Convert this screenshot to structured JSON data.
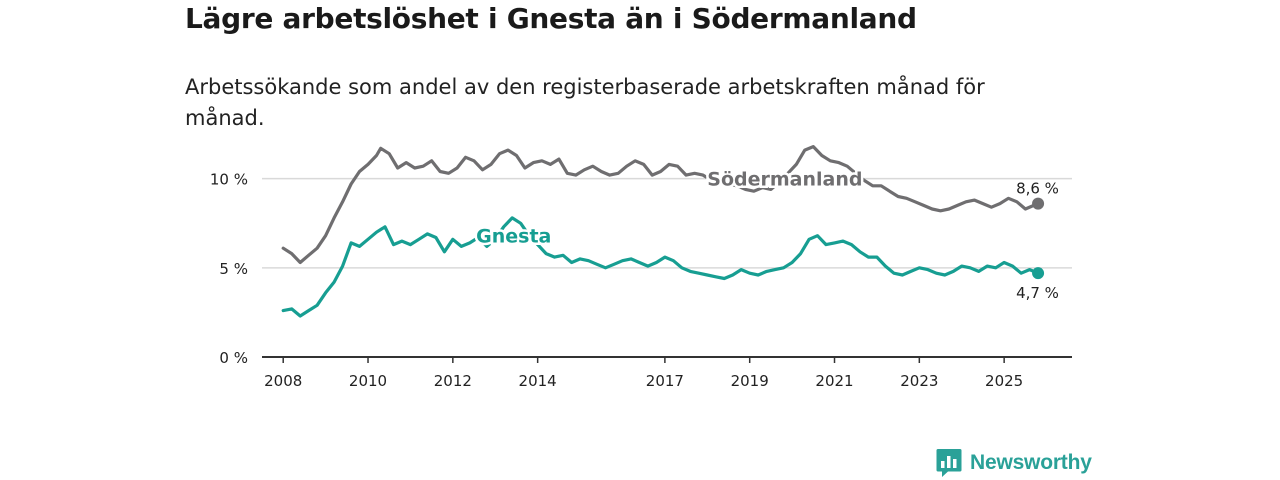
{
  "title": "Lägre arbetslöshet i Gnesta än i Södermanland",
  "subtitle": "Arbetssökande som andel av den registerbaserade arbetskraften månad för månad.",
  "brand": {
    "name": "Newsworthy"
  },
  "colors": {
    "gnesta": "#179e92",
    "sodermanland": "#6f6e70",
    "axis": "#333333",
    "grid": "#d9d9d9"
  },
  "chart_data": {
    "type": "line",
    "title": "Lägre arbetslöshet i Gnesta än i Södermanland",
    "ylabel": "",
    "xlabel": "",
    "ylim": [
      0,
      12
    ],
    "xlim": [
      2007.5,
      2026.6
    ],
    "y_ticks": [
      {
        "value": 0,
        "label": "0 %"
      },
      {
        "value": 5,
        "label": "5 %"
      },
      {
        "value": 10,
        "label": "10 %"
      }
    ],
    "x_ticks": [
      {
        "value": 2008,
        "label": "2008"
      },
      {
        "value": 2010,
        "label": "2010"
      },
      {
        "value": 2012,
        "label": "2012"
      },
      {
        "value": 2014,
        "label": "2014"
      },
      {
        "value": 2017,
        "label": "2017"
      },
      {
        "value": 2019,
        "label": "2019"
      },
      {
        "value": 2021,
        "label": "2021"
      },
      {
        "value": 2023,
        "label": "2023"
      },
      {
        "value": 2025,
        "label": "2025"
      }
    ],
    "series": [
      {
        "name": "Södermanland",
        "label": "Södermanland",
        "end_label": "8,6 %",
        "points": [
          [
            2008.0,
            6.1
          ],
          [
            2008.2,
            5.8
          ],
          [
            2008.4,
            5.3
          ],
          [
            2008.6,
            5.7
          ],
          [
            2008.8,
            6.1
          ],
          [
            2009.0,
            6.8
          ],
          [
            2009.2,
            7.8
          ],
          [
            2009.4,
            8.7
          ],
          [
            2009.6,
            9.7
          ],
          [
            2009.8,
            10.4
          ],
          [
            2010.0,
            10.8
          ],
          [
            2010.2,
            11.3
          ],
          [
            2010.3,
            11.7
          ],
          [
            2010.5,
            11.4
          ],
          [
            2010.7,
            10.6
          ],
          [
            2010.9,
            10.9
          ],
          [
            2011.1,
            10.6
          ],
          [
            2011.3,
            10.7
          ],
          [
            2011.5,
            11.0
          ],
          [
            2011.7,
            10.4
          ],
          [
            2011.9,
            10.3
          ],
          [
            2012.1,
            10.6
          ],
          [
            2012.3,
            11.2
          ],
          [
            2012.5,
            11.0
          ],
          [
            2012.7,
            10.5
          ],
          [
            2012.9,
            10.8
          ],
          [
            2013.1,
            11.4
          ],
          [
            2013.3,
            11.6
          ],
          [
            2013.5,
            11.3
          ],
          [
            2013.7,
            10.6
          ],
          [
            2013.9,
            10.9
          ],
          [
            2014.1,
            11.0
          ],
          [
            2014.3,
            10.8
          ],
          [
            2014.5,
            11.1
          ],
          [
            2014.7,
            10.3
          ],
          [
            2014.9,
            10.2
          ],
          [
            2015.1,
            10.5
          ],
          [
            2015.3,
            10.7
          ],
          [
            2015.5,
            10.4
          ],
          [
            2015.7,
            10.2
          ],
          [
            2015.9,
            10.3
          ],
          [
            2016.1,
            10.7
          ],
          [
            2016.3,
            11.0
          ],
          [
            2016.5,
            10.8
          ],
          [
            2016.7,
            10.2
          ],
          [
            2016.9,
            10.4
          ],
          [
            2017.1,
            10.8
          ],
          [
            2017.3,
            10.7
          ],
          [
            2017.5,
            10.2
          ],
          [
            2017.7,
            10.3
          ],
          [
            2017.9,
            10.2
          ],
          [
            2018.1,
            9.9
          ],
          [
            2018.3,
            9.8
          ],
          [
            2018.5,
            9.7
          ],
          [
            2018.7,
            9.6
          ],
          [
            2018.9,
            9.4
          ],
          [
            2019.1,
            9.3
          ],
          [
            2019.3,
            9.5
          ],
          [
            2019.5,
            9.4
          ],
          [
            2019.7,
            9.8
          ],
          [
            2019.9,
            10.3
          ],
          [
            2020.1,
            10.8
          ],
          [
            2020.3,
            11.6
          ],
          [
            2020.5,
            11.8
          ],
          [
            2020.7,
            11.3
          ],
          [
            2020.9,
            11.0
          ],
          [
            2021.1,
            10.9
          ],
          [
            2021.3,
            10.7
          ],
          [
            2021.5,
            10.3
          ],
          [
            2021.7,
            9.9
          ],
          [
            2021.9,
            9.6
          ],
          [
            2022.1,
            9.6
          ],
          [
            2022.3,
            9.3
          ],
          [
            2022.5,
            9.0
          ],
          [
            2022.7,
            8.9
          ],
          [
            2022.9,
            8.7
          ],
          [
            2023.1,
            8.5
          ],
          [
            2023.3,
            8.3
          ],
          [
            2023.5,
            8.2
          ],
          [
            2023.7,
            8.3
          ],
          [
            2023.9,
            8.5
          ],
          [
            2024.1,
            8.7
          ],
          [
            2024.3,
            8.8
          ],
          [
            2024.5,
            8.6
          ],
          [
            2024.7,
            8.4
          ],
          [
            2024.9,
            8.6
          ],
          [
            2025.1,
            8.9
          ],
          [
            2025.3,
            8.7
          ],
          [
            2025.5,
            8.3
          ],
          [
            2025.7,
            8.5
          ],
          [
            2025.8,
            8.6
          ]
        ]
      },
      {
        "name": "Gnesta",
        "label": "Gnesta",
        "end_label": "4,7 %",
        "points": [
          [
            2008.0,
            2.6
          ],
          [
            2008.2,
            2.7
          ],
          [
            2008.4,
            2.3
          ],
          [
            2008.6,
            2.6
          ],
          [
            2008.8,
            2.9
          ],
          [
            2009.0,
            3.6
          ],
          [
            2009.2,
            4.2
          ],
          [
            2009.4,
            5.1
          ],
          [
            2009.6,
            6.4
          ],
          [
            2009.8,
            6.2
          ],
          [
            2010.0,
            6.6
          ],
          [
            2010.2,
            7.0
          ],
          [
            2010.4,
            7.3
          ],
          [
            2010.6,
            6.3
          ],
          [
            2010.8,
            6.5
          ],
          [
            2011.0,
            6.3
          ],
          [
            2011.2,
            6.6
          ],
          [
            2011.4,
            6.9
          ],
          [
            2011.6,
            6.7
          ],
          [
            2011.8,
            5.9
          ],
          [
            2012.0,
            6.6
          ],
          [
            2012.2,
            6.2
          ],
          [
            2012.4,
            6.4
          ],
          [
            2012.6,
            6.7
          ],
          [
            2012.8,
            6.2
          ],
          [
            2013.0,
            6.6
          ],
          [
            2013.2,
            7.3
          ],
          [
            2013.4,
            7.8
          ],
          [
            2013.6,
            7.5
          ],
          [
            2013.8,
            6.8
          ],
          [
            2014.0,
            6.3
          ],
          [
            2014.2,
            5.8
          ],
          [
            2014.4,
            5.6
          ],
          [
            2014.6,
            5.7
          ],
          [
            2014.8,
            5.3
          ],
          [
            2015.0,
            5.5
          ],
          [
            2015.2,
            5.4
          ],
          [
            2015.4,
            5.2
          ],
          [
            2015.6,
            5.0
          ],
          [
            2015.8,
            5.2
          ],
          [
            2016.0,
            5.4
          ],
          [
            2016.2,
            5.5
          ],
          [
            2016.4,
            5.3
          ],
          [
            2016.6,
            5.1
          ],
          [
            2016.8,
            5.3
          ],
          [
            2017.0,
            5.6
          ],
          [
            2017.2,
            5.4
          ],
          [
            2017.4,
            5.0
          ],
          [
            2017.6,
            4.8
          ],
          [
            2017.8,
            4.7
          ],
          [
            2018.0,
            4.6
          ],
          [
            2018.2,
            4.5
          ],
          [
            2018.4,
            4.4
          ],
          [
            2018.6,
            4.6
          ],
          [
            2018.8,
            4.9
          ],
          [
            2019.0,
            4.7
          ],
          [
            2019.2,
            4.6
          ],
          [
            2019.4,
            4.8
          ],
          [
            2019.6,
            4.9
          ],
          [
            2019.8,
            5.0
          ],
          [
            2020.0,
            5.3
          ],
          [
            2020.2,
            5.8
          ],
          [
            2020.4,
            6.6
          ],
          [
            2020.6,
            6.8
          ],
          [
            2020.8,
            6.3
          ],
          [
            2021.0,
            6.4
          ],
          [
            2021.2,
            6.5
          ],
          [
            2021.4,
            6.3
          ],
          [
            2021.6,
            5.9
          ],
          [
            2021.8,
            5.6
          ],
          [
            2022.0,
            5.6
          ],
          [
            2022.2,
            5.1
          ],
          [
            2022.4,
            4.7
          ],
          [
            2022.6,
            4.6
          ],
          [
            2022.8,
            4.8
          ],
          [
            2023.0,
            5.0
          ],
          [
            2023.2,
            4.9
          ],
          [
            2023.4,
            4.7
          ],
          [
            2023.6,
            4.6
          ],
          [
            2023.8,
            4.8
          ],
          [
            2024.0,
            5.1
          ],
          [
            2024.2,
            5.0
          ],
          [
            2024.4,
            4.8
          ],
          [
            2024.6,
            5.1
          ],
          [
            2024.8,
            5.0
          ],
          [
            2025.0,
            5.3
          ],
          [
            2025.2,
            5.1
          ],
          [
            2025.4,
            4.7
          ],
          [
            2025.6,
            4.9
          ],
          [
            2025.8,
            4.7
          ]
        ]
      }
    ]
  }
}
